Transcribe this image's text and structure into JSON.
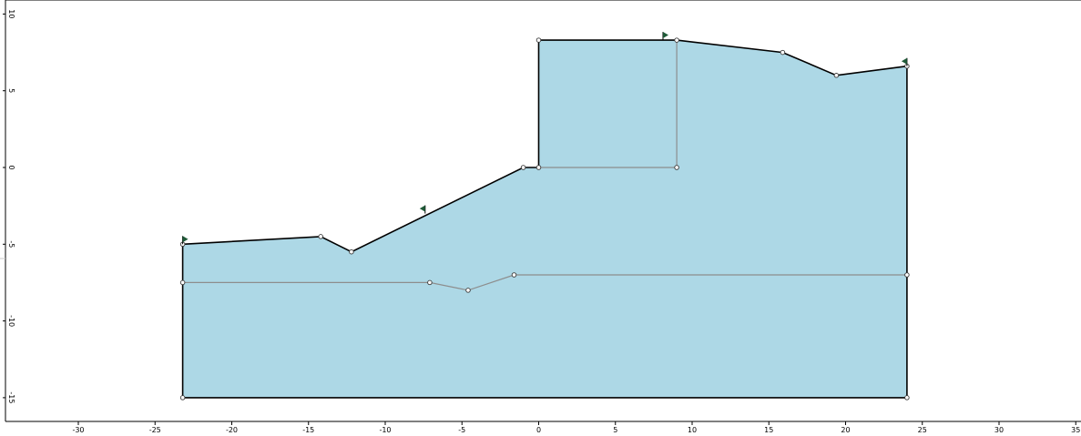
{
  "colors": {
    "soil": "#add8e6",
    "outline": "#000000",
    "inner_line": "#8d8d8d",
    "marker": "#1f5a38"
  },
  "icons": [
    "vertex-marker",
    "left-end-flag-icon",
    "right-end-flag-icon"
  ],
  "axes": {
    "x": {
      "min": -35,
      "max": 35,
      "ticks": [
        -30,
        -25,
        -20,
        -15,
        -10,
        -5,
        0,
        5,
        10,
        15,
        20,
        25,
        30,
        35
      ],
      "labels": [
        "-30",
        "-25",
        "-20",
        "-15",
        "-10",
        "-5",
        "0",
        "5",
        "10",
        "15",
        "20",
        "25",
        "30",
        "35"
      ]
    },
    "y": {
      "min": -16.5,
      "max": 10.7,
      "ticks": [
        10,
        5,
        0,
        -5,
        -10,
        -15
      ],
      "labels": [
        "10",
        "5",
        "0",
        "-5",
        "-10",
        "-15"
      ]
    }
  },
  "model": {
    "external_boundary": [
      [
        -23.2,
        -5
      ],
      [
        -14.2,
        -4.5
      ],
      [
        -12.2,
        -5.5
      ],
      [
        -1,
        0
      ],
      [
        0,
        0
      ],
      [
        0,
        8.3
      ],
      [
        9,
        8.3
      ],
      [
        15.9,
        7.5
      ],
      [
        19.4,
        6
      ],
      [
        24,
        6.6
      ],
      [
        24,
        -15
      ],
      [
        -23.2,
        -15
      ]
    ],
    "material_boundaries": [
      [
        [
          0,
          0
        ],
        [
          9,
          0
        ],
        [
          9,
          8.3
        ]
      ],
      [
        [
          -23.2,
          -7.5
        ],
        [
          -7.1,
          -7.5
        ],
        [
          -4.6,
          -8
        ],
        [
          -1.6,
          -7
        ],
        [
          24,
          -7
        ]
      ]
    ],
    "slope_limit_markers": [
      {
        "x": -23.2,
        "y": -5,
        "dir": "right"
      },
      {
        "x": -7.4,
        "y": -3,
        "dir": "left"
      },
      {
        "x": 8.1,
        "y": 8.3,
        "dir": "right"
      },
      {
        "x": 24,
        "y": 6.6,
        "dir": "left"
      }
    ]
  }
}
